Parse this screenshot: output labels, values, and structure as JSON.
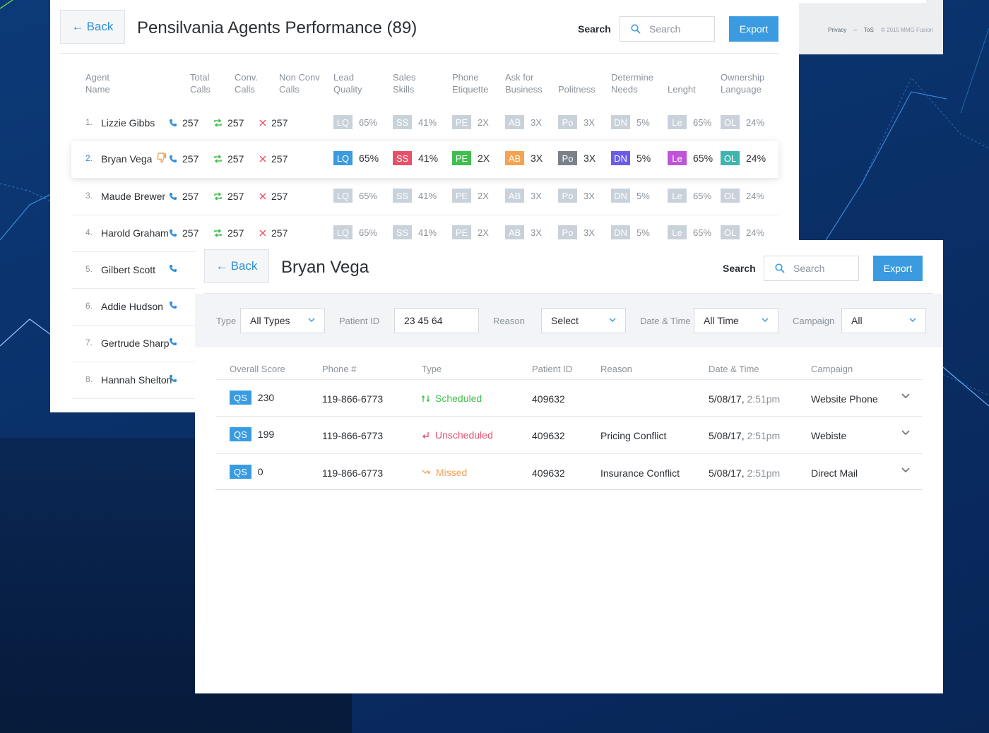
{
  "footer": {
    "privacy": "Privacy",
    "dash": "–",
    "tos": "ToS",
    "copyright": "© 2015 MMG Fusion"
  },
  "performance": {
    "back_label": "Back",
    "title": "Pensilvania Agents Performance (89)",
    "search_label": "Search",
    "search_placeholder": "Search",
    "export_label": "Export",
    "columns": {
      "agent": [
        "Agent",
        "Name"
      ],
      "total": [
        "Total",
        "Calls"
      ],
      "conv": [
        "Conv.",
        "Calls"
      ],
      "nonconv": [
        "Non Conv",
        "Calls"
      ],
      "lq": [
        "Lead",
        "Quality"
      ],
      "ss": [
        "Sales",
        "Skills"
      ],
      "pe": [
        "Phone",
        "Etiquette"
      ],
      "ab": [
        "Ask for",
        "Business"
      ],
      "po": [
        "Politness"
      ],
      "dn": [
        "Determine",
        "Needs"
      ],
      "le": [
        "Lenght"
      ],
      "ol": [
        "Ownership",
        "Language"
      ]
    },
    "badges": {
      "lq": "LQ",
      "ss": "SS",
      "pe": "PE",
      "ab": "AB",
      "po": "Po",
      "dn": "DN",
      "le": "Le",
      "ol": "OL"
    },
    "badge_colors": {
      "lq": "#3a9be0",
      "ss": "#e8506a",
      "pe": "#3fbf4f",
      "ab": "#f5a251",
      "po": "#7a8189",
      "dn": "#6a5ce8",
      "le": "#c054d9",
      "ol": "#3fb5b0"
    },
    "rows": [
      {
        "num": "1.",
        "name": "Lizzie Gibbs",
        "total": "257",
        "conv": "257",
        "nonconv": "257",
        "lq": "65%",
        "ss": "41%",
        "pe": "2X",
        "ab": "3X",
        "po": "3X",
        "dn": "5%",
        "le": "65%",
        "ol": "24%"
      },
      {
        "num": "2.",
        "name": "Bryan Vega",
        "total": "257",
        "conv": "257",
        "nonconv": "257",
        "lq": "65%",
        "ss": "41%",
        "pe": "2X",
        "ab": "3X",
        "po": "3X",
        "dn": "5%",
        "le": "65%",
        "ol": "24%"
      },
      {
        "num": "3.",
        "name": "Maude Brewer",
        "total": "257",
        "conv": "257",
        "nonconv": "257",
        "lq": "65%",
        "ss": "41%",
        "pe": "2X",
        "ab": "3X",
        "po": "3X",
        "dn": "5%",
        "le": "65%",
        "ol": "24%"
      },
      {
        "num": "4.",
        "name": "Harold Graham",
        "total": "257",
        "conv": "257",
        "nonconv": "257",
        "lq": "65%",
        "ss": "41%",
        "pe": "2X",
        "ab": "3X",
        "po": "3X",
        "dn": "5%",
        "le": "65%",
        "ol": "24%"
      },
      {
        "num": "5.",
        "name": "Gilbert Scott"
      },
      {
        "num": "6.",
        "name": "Addie Hudson"
      },
      {
        "num": "7.",
        "name": "Gertrude Sharp"
      },
      {
        "num": "8.",
        "name": "Hannah Shelton"
      }
    ]
  },
  "detail": {
    "back_label": "Back",
    "title": "Bryan Vega",
    "search_label": "Search",
    "search_placeholder": "Search",
    "export_label": "Export",
    "filters": {
      "type_label": "Type",
      "type_value": "All Types",
      "patient_label": "Patient ID",
      "patient_value": "23 45 64",
      "reason_label": "Reason",
      "reason_value": "Select",
      "date_label": "Date & Time",
      "date_value": "All Time",
      "campaign_label": "Campaign",
      "campaign_value": "All"
    },
    "columns": {
      "score": "Overall Score",
      "phone": "Phone #",
      "type": "Type",
      "patient": "Patient ID",
      "reason": "Reason",
      "date": "Date & Time",
      "campaign": "Campaign"
    },
    "qs_label": "QS",
    "type_colors": {
      "scheduled": "#3fbf4f",
      "unscheduled": "#e8506a",
      "missed": "#f5a251"
    },
    "rows": [
      {
        "score": "230",
        "phone": "119-866-6773",
        "type": "Scheduled",
        "type_key": "scheduled",
        "patient": "409632",
        "reason": "",
        "date": "5/08/17,",
        "time": "2:51pm",
        "campaign": "Website Phone"
      },
      {
        "score": "199",
        "phone": "119-866-6773",
        "type": "Unscheduled",
        "type_key": "unscheduled",
        "patient": "409632",
        "reason": "Pricing Conflict",
        "date": "5/08/17,",
        "time": "2:51pm",
        "campaign": "Webiste"
      },
      {
        "score": "0",
        "phone": "119-866-6773",
        "type": "Missed",
        "type_key": "missed",
        "patient": "409632",
        "reason": "Insurance Conflict",
        "date": "5/08/17,",
        "time": "2:51pm",
        "campaign": "Direct Mail"
      }
    ]
  }
}
